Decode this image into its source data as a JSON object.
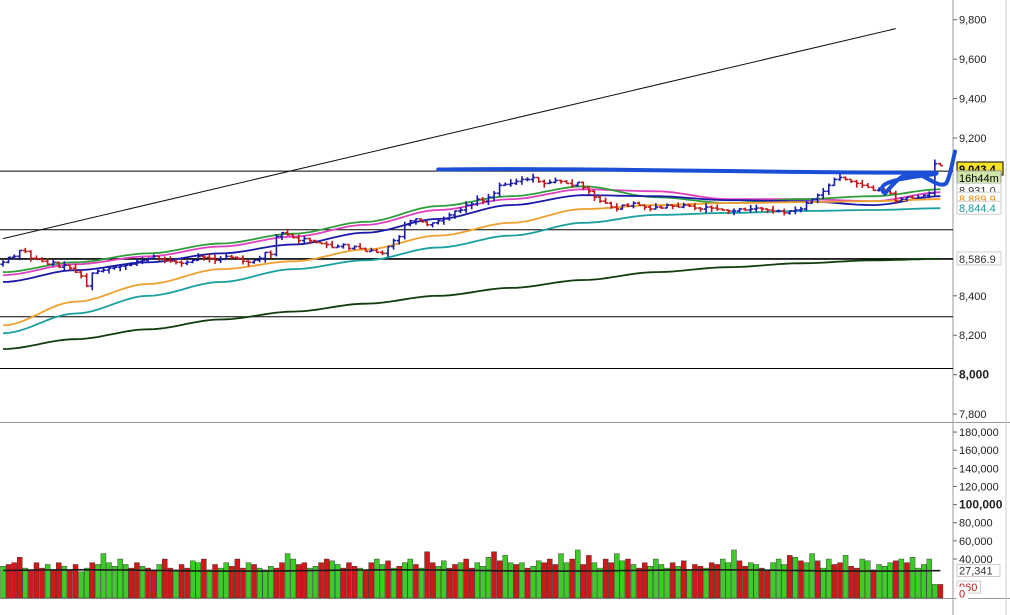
{
  "chart_data": [
    {
      "type": "candlestick-bar",
      "panel": "price",
      "ylim": [
        7760,
        9900
      ],
      "y_ticks": [
        {
          "label": "9,800",
          "value": 9800,
          "bold": false
        },
        {
          "label": "9,600",
          "value": 9600,
          "bold": false
        },
        {
          "label": "9,400",
          "value": 9400,
          "bold": false
        },
        {
          "label": "9,200",
          "value": 9200,
          "bold": false
        },
        {
          "label": "8,400",
          "value": 8400,
          "bold": false
        },
        {
          "label": "8,200",
          "value": 8200,
          "bold": false
        },
        {
          "label": "8,000",
          "value": 8000,
          "bold": true
        },
        {
          "label": "7,800",
          "value": 7800,
          "bold": false
        }
      ],
      "price_tags": [
        {
          "label": "9,043.4",
          "value": 9043,
          "bg": "#f5e12a",
          "fg": "#000000",
          "border": "#000000"
        },
        {
          "label": "16h44m",
          "value": 8998,
          "bg": "#cfe8a8",
          "fg": "#000000",
          "border": "#999999"
        },
        {
          "label": "8,931.0",
          "value": 8935,
          "bg": "#ffffff",
          "fg": "#333333",
          "border": "#cccccc"
        },
        {
          "label": "8,889.9",
          "value": 8890,
          "bg": "#ffffff",
          "fg": "#ef8c00",
          "border": "#cccccc"
        },
        {
          "label": "8,844.4",
          "value": 8844,
          "bg": "#ffffff",
          "fg": "#1a9a9a",
          "border": "#cccccc"
        },
        {
          "label": "8,586.9",
          "value": 8587,
          "bg": "#ffffff",
          "fg": "#333333",
          "border": "#cccccc"
        }
      ],
      "horizontal_levels": [
        9032,
        8735,
        8587,
        8294,
        8031
      ],
      "trendline": {
        "from": {
          "bar": 0,
          "value": 8690
        },
        "to": {
          "bar": 160,
          "value": 9755
        }
      },
      "resistance_drawing": {
        "value": 9030,
        "from_bar": 78,
        "to_bar": 167,
        "color": "#1a4fd6"
      },
      "moving_averages": [
        {
          "color": "#e040c0",
          "values": [
            8505,
            8560,
            8600,
            8650,
            8700,
            8760,
            8835,
            8890,
            8940,
            8930,
            8890,
            8890,
            8880,
            8925
          ]
        },
        {
          "color": "#2f9e3a",
          "values": [
            8520,
            8570,
            8615,
            8665,
            8715,
            8775,
            8855,
            8905,
            8955,
            8900,
            8870,
            8890,
            8905,
            8940
          ]
        },
        {
          "color": "#1a1aa8",
          "values": [
            8470,
            8530,
            8570,
            8615,
            8660,
            8720,
            8790,
            8860,
            8910,
            8905,
            8885,
            8880,
            8860,
            8905
          ]
        },
        {
          "color": "#f0a030",
          "values": [
            8250,
            8370,
            8460,
            8535,
            8575,
            8635,
            8705,
            8770,
            8840,
            8860,
            8870,
            8875,
            8880,
            8890
          ]
        },
        {
          "color": "#1aa0a0",
          "values": [
            8210,
            8310,
            8400,
            8470,
            8535,
            8580,
            8645,
            8705,
            8770,
            8810,
            8820,
            8830,
            8835,
            8844
          ]
        },
        {
          "color": "#0f3f0f",
          "values": [
            8130,
            8180,
            8230,
            8280,
            8320,
            8360,
            8400,
            8440,
            8480,
            8520,
            8545,
            8565,
            8580,
            8587
          ]
        }
      ],
      "ma_bars": [
        0,
        13,
        26,
        39,
        52,
        65,
        78,
        91,
        104,
        117,
        130,
        143,
        156,
        168
      ],
      "bars": {
        "count": 169,
        "bull_color": "#1a1aa8",
        "bear_color": "#c01818",
        "closes": [
          8570,
          8595,
          8600,
          8630,
          8625,
          8590,
          8585,
          8575,
          8560,
          8570,
          8545,
          8555,
          8540,
          8520,
          8500,
          8450,
          8515,
          8525,
          8530,
          8540,
          8545,
          8550,
          8555,
          8560,
          8575,
          8580,
          8590,
          8600,
          8585,
          8580,
          8575,
          8570,
          8565,
          8570,
          8580,
          8600,
          8595,
          8590,
          8580,
          8585,
          8600,
          8595,
          8590,
          8575,
          8570,
          8580,
          8590,
          8620,
          8610,
          8700,
          8720,
          8710,
          8695,
          8680,
          8690,
          8680,
          8670,
          8665,
          8660,
          8645,
          8650,
          8660,
          8640,
          8650,
          8640,
          8625,
          8630,
          8620,
          8615,
          8650,
          8680,
          8700,
          8760,
          8780,
          8790,
          8775,
          8760,
          8770,
          8780,
          8790,
          8810,
          8830,
          8835,
          8860,
          8865,
          8890,
          8880,
          8900,
          8920,
          8960,
          8965,
          8970,
          8980,
          8990,
          8990,
          9000,
          8980,
          8970,
          8975,
          8985,
          8980,
          8970,
          8960,
          8975,
          8950,
          8930,
          8900,
          8880,
          8870,
          8850,
          8840,
          8860,
          8855,
          8870,
          8860,
          8850,
          8840,
          8850,
          8845,
          8860,
          8855,
          8850,
          8860,
          8855,
          8845,
          8840,
          8850,
          8845,
          8840,
          8835,
          8830,
          8830,
          8840,
          8835,
          8840,
          8845,
          8840,
          8835,
          8830,
          8830,
          8820,
          8830,
          8835,
          8840,
          8870,
          8890,
          8910,
          8930,
          8960,
          8990,
          9000,
          8990,
          8980,
          8970,
          8960,
          8950,
          8935,
          8940,
          8930,
          8920,
          8880,
          8890,
          8900,
          8895,
          8900,
          8910,
          8920,
          9070,
          9060
        ],
        "volatility": 22
      }
    },
    {
      "type": "bar",
      "panel": "volume",
      "ylim": [
        -3000,
        190000
      ],
      "y_ticks": [
        {
          "label": "180,000",
          "value": 180000,
          "bold": false
        },
        {
          "label": "160,000",
          "value": 160000,
          "bold": false
        },
        {
          "label": "140,000",
          "value": 140000,
          "bold": false
        },
        {
          "label": "120,000",
          "value": 120000,
          "bold": false
        },
        {
          "label": "100,000",
          "value": 100000,
          "bold": true
        },
        {
          "label": "80,000",
          "value": 80000,
          "bold": false
        },
        {
          "label": "60,000",
          "value": 60000,
          "bold": false
        },
        {
          "label": "40,000",
          "value": 40000,
          "bold": false
        }
      ],
      "price_tags": [
        {
          "label": "27,341",
          "value": 27341,
          "bg": "#ffffff",
          "fg": "#333333",
          "border": "#cccccc"
        },
        {
          "label": "960",
          "value": 9000,
          "bg": "#ffffff",
          "fg": "#c01818",
          "border": "#cccccc"
        },
        {
          "label": "0",
          "value": 2000,
          "bg": "#ffffff",
          "fg": "#c01818",
          "border": "#ffffff"
        }
      ],
      "up_color": "#3ecb2a",
      "down_color": "#d01818",
      "volume_ma": 27341,
      "values": [
        32000,
        34000,
        36000,
        42000,
        30000,
        28000,
        36000,
        30000,
        34000,
        28000,
        36000,
        32000,
        28000,
        34000,
        26000,
        30000,
        36000,
        34000,
        46000,
        36000,
        32000,
        40000,
        34000,
        30000,
        36000,
        32000,
        30000,
        28000,
        34000,
        40000,
        30000,
        28000,
        34000,
        30000,
        38000,
        36000,
        40000,
        28000,
        34000,
        30000,
        36000,
        32000,
        40000,
        30000,
        36000,
        34000,
        30000,
        28000,
        32000,
        30000,
        36000,
        46000,
        40000,
        34000,
        36000,
        30000,
        32000,
        36000,
        40000,
        38000,
        34000,
        30000,
        36000,
        32000,
        30000,
        28000,
        36000,
        40000,
        34000,
        38000,
        30000,
        32000,
        36000,
        40000,
        34000,
        30000,
        48000,
        36000,
        32000,
        38000,
        30000,
        34000,
        36000,
        40000,
        30000,
        36000,
        32000,
        42000,
        48000,
        38000,
        44000,
        36000,
        34000,
        36000,
        30000,
        32000,
        38000,
        36000,
        40000,
        34000,
        46000,
        36000,
        40000,
        50000,
        34000,
        44000,
        36000,
        30000,
        40000,
        36000,
        46000,
        38000,
        40000,
        34000,
        30000,
        36000,
        32000,
        40000,
        34000,
        30000,
        36000,
        32000,
        38000,
        28000,
        34000,
        32000,
        30000,
        36000,
        34000,
        40000,
        36000,
        50000,
        38000,
        32000,
        36000,
        34000,
        30000,
        28000,
        36000,
        40000,
        34000,
        44000,
        42000,
        38000,
        36000,
        46000,
        38000,
        30000,
        40000,
        34000,
        36000,
        44000,
        32000,
        30000,
        40000,
        38000,
        28000,
        34000,
        32000,
        36000,
        38000,
        40000,
        36000,
        42000,
        30000,
        34000,
        40000,
        12000,
        12000
      ],
      "ups": [
        1,
        0,
        0,
        0,
        1,
        0,
        0,
        0,
        1,
        0,
        0,
        1,
        0,
        0,
        1,
        1,
        0,
        1,
        1,
        1,
        1,
        1,
        1,
        0,
        0,
        1,
        0,
        0,
        1,
        0,
        0,
        1,
        0,
        0,
        1,
        1,
        0,
        1,
        0,
        1,
        1,
        0,
        0,
        0,
        1,
        0,
        1,
        1,
        1,
        0,
        0,
        1,
        1,
        0,
        0,
        1,
        1,
        0,
        0,
        1,
        1,
        0,
        0,
        0,
        1,
        0,
        0,
        1,
        1,
        0,
        1,
        0,
        1,
        1,
        0,
        1,
        0,
        0,
        1,
        1,
        0,
        0,
        1,
        0,
        0,
        1,
        1,
        1,
        0,
        0,
        1,
        1,
        0,
        1,
        0,
        1,
        1,
        0,
        0,
        0,
        1,
        1,
        0,
        1,
        0,
        0,
        1,
        1,
        0,
        0,
        1,
        1,
        0,
        1,
        0,
        0,
        1,
        1,
        1,
        1,
        0,
        1,
        0,
        1,
        0,
        0,
        1,
        0,
        0,
        1,
        1,
        1,
        0,
        0,
        1,
        1,
        0,
        0,
        1,
        1,
        1,
        0,
        1,
        0,
        1,
        1,
        0,
        1,
        1,
        0,
        0,
        1,
        0,
        0,
        1,
        1,
        0,
        1,
        1,
        1,
        0,
        1,
        0,
        1,
        1,
        1,
        1,
        1,
        0,
        0
      ]
    }
  ]
}
